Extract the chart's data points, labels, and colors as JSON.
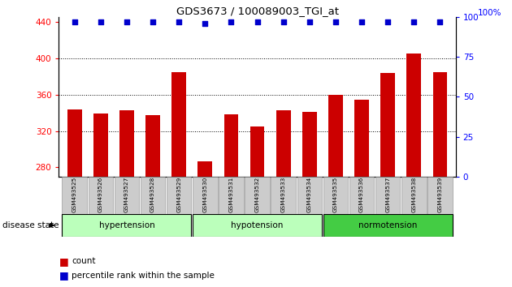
{
  "title": "GDS3673 / 100089003_TGI_at",
  "samples": [
    "GSM493525",
    "GSM493526",
    "GSM493527",
    "GSM493528",
    "GSM493529",
    "GSM493530",
    "GSM493531",
    "GSM493532",
    "GSM493533",
    "GSM493534",
    "GSM493535",
    "GSM493536",
    "GSM493537",
    "GSM493538",
    "GSM493539"
  ],
  "bar_values": [
    344,
    339,
    343,
    337,
    385,
    287,
    338,
    325,
    343,
    341,
    360,
    354,
    384,
    405,
    385
  ],
  "percentile_values": [
    97,
    97,
    97,
    97,
    97,
    96,
    97,
    97,
    97,
    97,
    97,
    97,
    97,
    97,
    97
  ],
  "bar_color": "#cc0000",
  "percentile_color": "#0000cc",
  "ylim_left": [
    270,
    445
  ],
  "ylim_right": [
    0,
    100
  ],
  "yticks_left": [
    280,
    320,
    360,
    400,
    440
  ],
  "yticks_right": [
    0,
    25,
    50,
    75,
    100
  ],
  "group_defs": [
    {
      "label": "hypertension",
      "start": 0,
      "end": 4,
      "color": "#bbffbb"
    },
    {
      "label": "hypotension",
      "start": 5,
      "end": 9,
      "color": "#bbffbb"
    },
    {
      "label": "normotension",
      "start": 10,
      "end": 14,
      "color": "#44cc44"
    }
  ],
  "disease_state_label": "disease state",
  "legend_count_label": "count",
  "legend_percentile_label": "percentile rank within the sample",
  "background_color": "#ffffff",
  "plot_bg_color": "#ffffff",
  "tick_label_bg": "#cccccc"
}
